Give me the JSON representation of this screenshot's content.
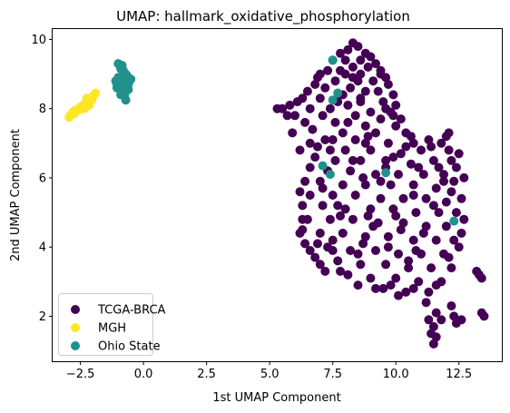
{
  "chart_data": {
    "type": "scatter",
    "title": "UMAP: hallmark_oxidative_phosphorylation",
    "xlabel": "1st UMAP Component",
    "ylabel": "2nd UMAP Component",
    "xlim": [
      -3.6,
      14.2
    ],
    "ylim": [
      0.7,
      10.3
    ],
    "xticks": [
      -2.5,
      0.0,
      2.5,
      5.0,
      7.5,
      10.0,
      12.5
    ],
    "xtick_labels": [
      "−2.5",
      "0.0",
      "2.5",
      "5.0",
      "7.5",
      "10.0",
      "12.5"
    ],
    "yticks": [
      2,
      4,
      6,
      8,
      10
    ],
    "ytick_labels": [
      "2",
      "4",
      "6",
      "8",
      "10"
    ],
    "grid": false,
    "legend_position": "lower-left",
    "series": [
      {
        "name": "TCGA-BRCA",
        "color": "#440154",
        "points": [
          [
            8.3,
            9.9
          ],
          [
            8.5,
            9.8
          ],
          [
            8.1,
            9.7
          ],
          [
            8.8,
            9.6
          ],
          [
            7.8,
            9.6
          ],
          [
            9.0,
            9.5
          ],
          [
            8.6,
            9.4
          ],
          [
            8.0,
            9.4
          ],
          [
            7.5,
            9.4
          ],
          [
            9.2,
            9.3
          ],
          [
            8.9,
            9.2
          ],
          [
            8.3,
            9.2
          ],
          [
            7.8,
            9.1
          ],
          [
            7.3,
            9.1
          ],
          [
            9.4,
            9.0
          ],
          [
            8.6,
            9.0
          ],
          [
            8.0,
            9.0
          ],
          [
            7.0,
            9.0
          ],
          [
            9.6,
            8.9
          ],
          [
            9.1,
            8.8
          ],
          [
            8.5,
            8.8
          ],
          [
            7.6,
            8.8
          ],
          [
            6.8,
            8.7
          ],
          [
            9.7,
            8.7
          ],
          [
            8.2,
            8.6
          ],
          [
            7.2,
            8.6
          ],
          [
            9.3,
            8.5
          ],
          [
            8.8,
            8.5
          ],
          [
            6.5,
            8.5
          ],
          [
            9.9,
            8.4
          ],
          [
            7.9,
            8.4
          ],
          [
            7.0,
            8.3
          ],
          [
            6.3,
            8.3
          ],
          [
            9.5,
            8.2
          ],
          [
            8.6,
            8.2
          ],
          [
            6.1,
            8.2
          ],
          [
            10.0,
            8.1
          ],
          [
            8.1,
            8.1
          ],
          [
            5.8,
            8.1
          ],
          [
            5.5,
            8.0
          ],
          [
            6.6,
            8.0
          ],
          [
            7.4,
            8.0
          ],
          [
            9.0,
            7.9
          ],
          [
            9.8,
            7.9
          ],
          [
            5.3,
            8.0
          ],
          [
            6.0,
            7.8
          ],
          [
            7.1,
            7.8
          ],
          [
            8.4,
            7.8
          ],
          [
            9.4,
            7.7
          ],
          [
            10.2,
            7.7
          ],
          [
            6.4,
            7.6
          ],
          [
            7.6,
            7.6
          ],
          [
            8.8,
            7.5
          ],
          [
            10.0,
            7.5
          ],
          [
            6.7,
            7.4
          ],
          [
            7.9,
            7.3
          ],
          [
            9.2,
            7.3
          ],
          [
            10.4,
            7.3
          ],
          [
            7.2,
            7.1
          ],
          [
            8.4,
            7.1
          ],
          [
            9.7,
            7.0
          ],
          [
            10.7,
            7.0
          ],
          [
            6.9,
            6.9
          ],
          [
            8.0,
            6.8
          ],
          [
            9.0,
            6.8
          ],
          [
            10.2,
            6.7
          ],
          [
            11.0,
            6.8
          ],
          [
            11.4,
            6.9
          ],
          [
            11.8,
            7.0
          ],
          [
            12.1,
            6.8
          ],
          [
            6.8,
            6.6
          ],
          [
            7.6,
            6.5
          ],
          [
            8.6,
            6.5
          ],
          [
            9.6,
            6.5
          ],
          [
            10.6,
            6.4
          ],
          [
            11.5,
            6.5
          ],
          [
            12.2,
            6.5
          ],
          [
            12.4,
            6.3
          ],
          [
            6.6,
            6.3
          ],
          [
            7.3,
            6.2
          ],
          [
            8.2,
            6.2
          ],
          [
            9.2,
            6.1
          ],
          [
            10.1,
            6.1
          ],
          [
            11.1,
            6.1
          ],
          [
            11.9,
            6.1
          ],
          [
            12.3,
            5.9
          ],
          [
            6.4,
            5.9
          ],
          [
            7.0,
            5.9
          ],
          [
            7.9,
            5.8
          ],
          [
            8.8,
            5.8
          ],
          [
            9.8,
            5.8
          ],
          [
            10.7,
            5.8
          ],
          [
            11.6,
            5.7
          ],
          [
            12.2,
            5.6
          ],
          [
            6.6,
            5.5
          ],
          [
            7.5,
            5.5
          ],
          [
            8.4,
            5.5
          ],
          [
            9.4,
            5.4
          ],
          [
            10.3,
            5.4
          ],
          [
            11.2,
            5.4
          ],
          [
            12.0,
            5.3
          ],
          [
            6.3,
            5.2
          ],
          [
            7.1,
            5.2
          ],
          [
            8.0,
            5.1
          ],
          [
            9.0,
            5.1
          ],
          [
            9.9,
            5.1
          ],
          [
            10.8,
            5.0
          ],
          [
            11.7,
            5.0
          ],
          [
            12.4,
            5.0
          ],
          [
            6.5,
            4.8
          ],
          [
            7.4,
            4.8
          ],
          [
            8.3,
            4.8
          ],
          [
            9.3,
            4.7
          ],
          [
            10.3,
            4.7
          ],
          [
            11.2,
            4.6
          ],
          [
            12.0,
            4.6
          ],
          [
            6.3,
            4.5
          ],
          [
            7.0,
            4.4
          ],
          [
            7.9,
            4.4
          ],
          [
            8.8,
            4.3
          ],
          [
            9.7,
            4.3
          ],
          [
            10.7,
            4.2
          ],
          [
            11.6,
            4.2
          ],
          [
            12.3,
            4.2
          ],
          [
            6.4,
            4.1
          ],
          [
            7.3,
            4.0
          ],
          [
            8.2,
            3.9
          ],
          [
            9.2,
            3.9
          ],
          [
            10.1,
            3.8
          ],
          [
            11.0,
            3.8
          ],
          [
            11.9,
            3.8
          ],
          [
            6.8,
            3.7
          ],
          [
            7.7,
            3.6
          ],
          [
            8.6,
            3.5
          ],
          [
            9.6,
            3.5
          ],
          [
            10.5,
            3.4
          ],
          [
            11.4,
            3.4
          ],
          [
            12.2,
            3.4
          ],
          [
            7.2,
            3.3
          ],
          [
            8.1,
            3.2
          ],
          [
            9.0,
            3.1
          ],
          [
            10.0,
            3.1
          ],
          [
            10.9,
            3.0
          ],
          [
            11.8,
            3.0
          ],
          [
            9.5,
            2.8
          ],
          [
            10.4,
            2.7
          ],
          [
            11.3,
            2.7
          ],
          [
            10.8,
            3.9
          ],
          [
            9.9,
            6.6
          ],
          [
            8.7,
            6.0
          ],
          [
            7.7,
            5.2
          ],
          [
            6.9,
            4.1
          ],
          [
            11.5,
            5.2
          ],
          [
            10.2,
            4.5
          ],
          [
            9.1,
            4.6
          ],
          [
            8.5,
            3.8
          ],
          [
            7.5,
            4.2
          ],
          [
            11.1,
            4.4
          ],
          [
            9.4,
            5.9
          ],
          [
            10.9,
            6.3
          ],
          [
            11.7,
            6.3
          ],
          [
            12.0,
            7.2
          ],
          [
            10.6,
            7.2
          ],
          [
            9.9,
            7.8
          ],
          [
            8.6,
            8.3
          ],
          [
            7.7,
            8.2
          ],
          [
            8.3,
            8.9
          ],
          [
            9.4,
            9.1
          ],
          [
            7.5,
            7.1
          ],
          [
            6.6,
            7.0
          ],
          [
            8.8,
            7.0
          ],
          [
            13.2,
            3.3
          ],
          [
            13.3,
            3.2
          ],
          [
            13.4,
            3.1
          ],
          [
            12.1,
            3.7
          ],
          [
            12.5,
            4.0
          ],
          [
            11.2,
            2.4
          ],
          [
            11.6,
            2.1
          ],
          [
            11.3,
            1.9
          ],
          [
            11.8,
            1.9
          ],
          [
            12.3,
            2.0
          ],
          [
            12.4,
            1.8
          ],
          [
            11.5,
            1.7
          ],
          [
            11.4,
            1.5
          ],
          [
            11.6,
            1.4
          ],
          [
            11.5,
            1.2
          ],
          [
            13.4,
            2.1
          ],
          [
            13.5,
            2.0
          ],
          [
            12.2,
            2.3
          ],
          [
            12.6,
            1.9
          ],
          [
            10.7,
            2.8
          ],
          [
            10.1,
            2.6
          ],
          [
            11.6,
            2.9
          ],
          [
            12.6,
            4.4
          ],
          [
            12.7,
            4.8
          ],
          [
            12.6,
            5.4
          ],
          [
            12.7,
            6.0
          ],
          [
            12.5,
            6.7
          ],
          [
            12.1,
            7.3
          ],
          [
            6.2,
            6.8
          ],
          [
            5.9,
            7.3
          ],
          [
            5.7,
            7.8
          ],
          [
            6.9,
            8.9
          ],
          [
            6.3,
            4.8
          ],
          [
            6.2,
            5.6
          ],
          [
            6.2,
            4.4
          ],
          [
            6.6,
            3.9
          ],
          [
            7.0,
            3.5
          ],
          [
            7.8,
            3.3
          ],
          [
            8.5,
            2.9
          ],
          [
            9.2,
            2.8
          ],
          [
            9.8,
            2.9
          ],
          [
            10.5,
            3.6
          ],
          [
            9.7,
            4.0
          ],
          [
            8.9,
            4.9
          ],
          [
            7.8,
            4.9
          ],
          [
            7.1,
            5.7
          ],
          [
            7.4,
            6.8
          ],
          [
            8.3,
            6.5
          ],
          [
            9.6,
            6.3
          ],
          [
            10.4,
            6.9
          ],
          [
            11.3,
            7.1
          ],
          [
            8.1,
            7.6
          ],
          [
            9.6,
            8.0
          ],
          [
            8.9,
            7.2
          ],
          [
            10.7,
            5.5
          ],
          [
            11.9,
            5.9
          ],
          [
            10.0,
            4.9
          ],
          [
            8.7,
            4.1
          ],
          [
            7.5,
            3.9
          ]
        ]
      },
      {
        "name": "MGH",
        "color": "#fde725",
        "points": [
          [
            -2.9,
            7.8
          ],
          [
            -2.8,
            7.9
          ],
          [
            -2.75,
            7.85
          ],
          [
            -2.95,
            7.75
          ],
          [
            -2.7,
            7.95
          ],
          [
            -2.5,
            8.05
          ],
          [
            -2.4,
            8.1
          ],
          [
            -2.3,
            8.15
          ],
          [
            -2.2,
            8.2
          ],
          [
            -2.45,
            8.0
          ],
          [
            -2.3,
            8.05
          ],
          [
            -2.1,
            8.3
          ],
          [
            -2.0,
            8.35
          ],
          [
            -1.9,
            8.45
          ],
          [
            -2.15,
            8.1
          ],
          [
            -2.35,
            8.0
          ],
          [
            -2.05,
            8.25
          ],
          [
            -2.25,
            8.3
          ],
          [
            -1.95,
            8.4
          ],
          [
            -2.6,
            7.95
          ]
        ]
      },
      {
        "name": "Ohio State",
        "color": "#21918c",
        "points": [
          [
            -1.0,
            9.3
          ],
          [
            -0.9,
            9.2
          ],
          [
            -0.8,
            9.1
          ],
          [
            -0.7,
            9.0
          ],
          [
            -0.6,
            8.9
          ],
          [
            -0.55,
            8.8
          ],
          [
            -0.6,
            8.7
          ],
          [
            -0.7,
            8.6
          ],
          [
            -0.8,
            8.5
          ],
          [
            -0.75,
            8.4
          ],
          [
            -0.7,
            8.25
          ],
          [
            -1.0,
            8.9
          ],
          [
            -1.05,
            8.7
          ],
          [
            -0.95,
            8.6
          ],
          [
            -0.85,
            8.8
          ],
          [
            -0.65,
            8.95
          ],
          [
            -0.9,
            8.4
          ],
          [
            -1.1,
            8.8
          ],
          [
            -0.5,
            8.85
          ],
          [
            -0.8,
            9.05
          ],
          [
            -0.9,
            9.15
          ],
          [
            -1.05,
            8.6
          ],
          [
            -0.6,
            8.55
          ],
          [
            -0.75,
            8.75
          ],
          [
            -0.85,
            9.25
          ],
          [
            7.5,
            9.4
          ],
          [
            7.7,
            8.45
          ],
          [
            7.5,
            8.25
          ],
          [
            7.1,
            6.35
          ],
          [
            7.4,
            6.1
          ],
          [
            9.6,
            6.15
          ],
          [
            12.3,
            4.75
          ]
        ]
      }
    ],
    "legend": [
      {
        "label": "TCGA-BRCA",
        "color": "#440154"
      },
      {
        "label": "MGH",
        "color": "#fde725"
      },
      {
        "label": "Ohio State",
        "color": "#21918c"
      }
    ]
  }
}
